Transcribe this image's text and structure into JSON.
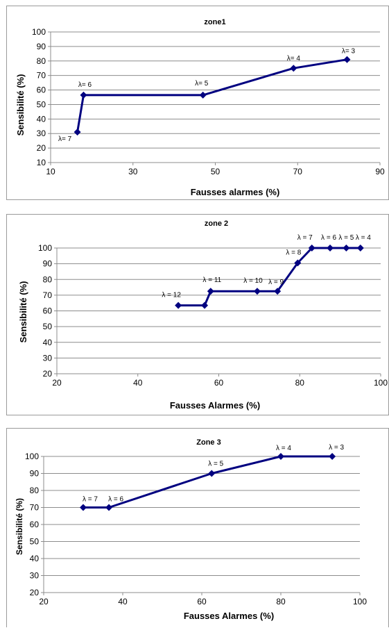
{
  "chart_data": [
    {
      "type": "line",
      "title": "zone1",
      "xlabel": "Fausses alarmes (%)",
      "ylabel": "Sensibilité (%)",
      "xlim": [
        10,
        90
      ],
      "ylim": [
        10,
        100
      ],
      "xticks": [
        "10",
        "30",
        "50",
        "70",
        "90"
      ],
      "yticks": [
        "10",
        "20",
        "30",
        "40",
        "50",
        "60",
        "70",
        "80",
        "90",
        "100"
      ],
      "grid": "horizontal",
      "color": "#000080",
      "series": [
        {
          "x": [
            16.5,
            18,
            47,
            69,
            82
          ],
          "y": [
            31,
            56.5,
            56.5,
            75,
            81
          ],
          "labels": [
            "λ= 7",
            "λ= 6",
            "λ= 5",
            "λ= 4",
            "λ= 3"
          ]
        }
      ]
    },
    {
      "type": "line",
      "title": "zone 2",
      "xlabel": "Fausses Alarmes (%)",
      "ylabel": "Sensibilité (%)",
      "xlim": [
        20,
        100
      ],
      "ylim": [
        20,
        100
      ],
      "xticks": [
        "20",
        "40",
        "60",
        "80",
        "100"
      ],
      "yticks": [
        "20",
        "30",
        "40",
        "50",
        "60",
        "70",
        "80",
        "90",
        "100"
      ],
      "grid": "horizontal",
      "color": "#000080",
      "series": [
        {
          "x": [
            50,
            56.5,
            58,
            69.5,
            74.5,
            79.5,
            83,
            87.5,
            91.5,
            95
          ],
          "y": [
            63.5,
            63.5,
            72.5,
            72.5,
            72.5,
            90.5,
            100,
            100,
            100,
            100
          ],
          "labels": [
            "λ = 12",
            "",
            "λ = 11",
            "λ = 10",
            "λ = 9",
            "λ = 8",
            "λ = 7",
            "λ = 6",
            "λ = 5",
            "λ = 4"
          ]
        }
      ]
    },
    {
      "type": "line",
      "title": "Zone 3",
      "xlabel": "Fausses Alarmes (%)",
      "ylabel": "Sensibilité (%)",
      "xlim": [
        20,
        100
      ],
      "ylim": [
        20,
        100
      ],
      "xticks": [
        "20",
        "40",
        "60",
        "80",
        "100"
      ],
      "yticks": [
        "20",
        "30",
        "40",
        "50",
        "60",
        "70",
        "80",
        "90",
        "100"
      ],
      "grid": "horizontal",
      "color": "#000080",
      "series": [
        {
          "x": [
            30,
            36.5,
            62.5,
            80,
            93
          ],
          "y": [
            70,
            70,
            90,
            100,
            100
          ],
          "labels": [
            "λ = 7",
            "λ = 6",
            "λ = 5",
            "λ = 4",
            "λ = 3"
          ]
        }
      ]
    }
  ]
}
